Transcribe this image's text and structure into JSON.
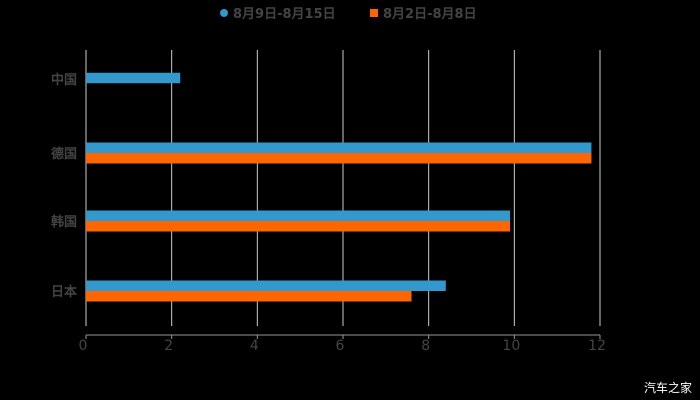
{
  "chart_data": {
    "type": "bar",
    "orientation": "horizontal",
    "title": "",
    "categories": [
      "中国",
      "德国",
      "韩国",
      "日本"
    ],
    "series": [
      {
        "name": "8月9日-8月15日",
        "color": "#3399CC",
        "values": [
          2.2,
          11.8,
          9.9,
          8.4
        ]
      },
      {
        "name": "8月2日-8月8日",
        "color": "#FF6600",
        "values": [
          null,
          11.8,
          9.9,
          7.6
        ]
      }
    ],
    "xlabel": "",
    "ylabel": "",
    "xlim": [
      0,
      12
    ],
    "x_ticks": [
      "0",
      "2",
      "4",
      "6",
      "8",
      "10",
      "12"
    ],
    "grid": true,
    "legend_position": "top"
  },
  "legend": {
    "items": [
      {
        "label": "8月9日-8月15日",
        "color": "#3399CC",
        "marker": "circle"
      },
      {
        "label": "8月2日-8月8日",
        "color": "#FF6600",
        "marker": "square"
      }
    ]
  },
  "watermark": "汽车之家"
}
